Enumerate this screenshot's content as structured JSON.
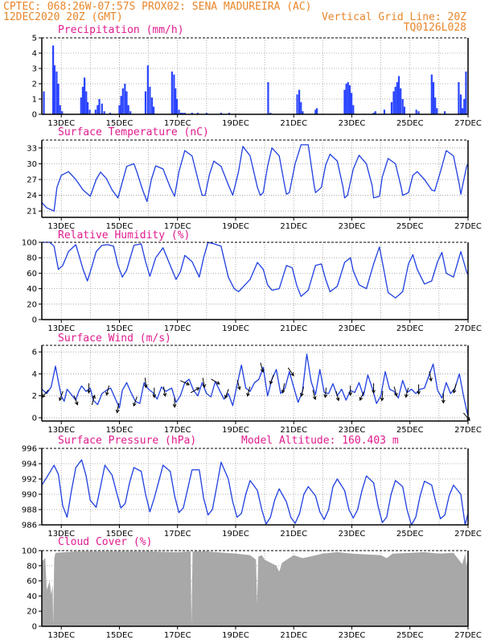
{
  "header": {
    "left_line1": "CPTEC:   068:26W-07:57S   PROX02: SENA MADUREIRA (AC)",
    "left_line2": "12DEC2020 20Z (GMT)",
    "right_line2": "Vertical Grid Line: 20Z",
    "right_line3": "TQ0126L028"
  },
  "colors": {
    "header_text": "#e8862a",
    "panel_title": "#e01b8e",
    "series_line": "#1f3fe0",
    "precip_bars": "#2a44ff",
    "cloud_fill": "#a8a8a8",
    "wind_arrows": "#000000"
  },
  "x_axis": {
    "tick_labels": [
      "13DEC",
      "15DEC",
      "17DEC",
      "19DEC",
      "21DEC",
      "23DEC",
      "25DEC",
      "27DEC"
    ],
    "tick_days": [
      13,
      15,
      17,
      19,
      21,
      23,
      25,
      27
    ],
    "start_day": 12.33,
    "end_day": 27.0,
    "vertical_grid_hour": "20Z"
  },
  "extra_label": {
    "model_altitude": "Model Altitude: 160.403 m"
  },
  "chart_data": [
    {
      "id": "precip",
      "type": "bar",
      "title": "Precipitation (mm/h)",
      "ylim": [
        0,
        5
      ],
      "yticks": [
        0,
        1,
        2,
        3,
        4,
        5
      ],
      "grid": true,
      "x": [
        12.4,
        12.72,
        12.77,
        12.84,
        12.9,
        12.96,
        13.03,
        13.68,
        13.74,
        13.8,
        13.86,
        13.91,
        13.98,
        14.18,
        14.25,
        14.31,
        14.4,
        14.48,
        14.68,
        15.0,
        15.06,
        15.12,
        15.19,
        15.25,
        15.31,
        15.38,
        15.9,
        15.98,
        16.05,
        16.12,
        16.18,
        16.81,
        16.88,
        16.93,
        16.98,
        17.05,
        17.12,
        17.18,
        17.25,
        17.5,
        17.7,
        18.0,
        18.5,
        18.78,
        20.12,
        20.2,
        21.12,
        21.19,
        21.25,
        21.31,
        21.75,
        21.8,
        22.75,
        22.81,
        22.87,
        22.93,
        22.99,
        23.05,
        23.75,
        23.81,
        24.12,
        24.37,
        24.44,
        24.5,
        24.56,
        24.62,
        24.68,
        24.75,
        24.81,
        25.22,
        25.3,
        25.75,
        25.81,
        25.87,
        25.93,
        26.2,
        26.68,
        26.75,
        26.81,
        26.87,
        26.93
      ],
      "values": [
        1.5,
        4.5,
        3.2,
        2.8,
        2.0,
        0.6,
        0.2,
        1.1,
        1.8,
        2.4,
        1.5,
        0.8,
        0.3,
        0.3,
        0.6,
        1.0,
        0.7,
        0.2,
        0.1,
        0.6,
        1.2,
        1.7,
        2.0,
        1.5,
        0.6,
        0.2,
        1.5,
        3.2,
        1.8,
        1.1,
        0.5,
        2.8,
        2.6,
        1.7,
        1.0,
        0.3,
        0.1,
        0.1,
        0.1,
        0.1,
        0.1,
        0.1,
        0.1,
        0.1,
        2.1,
        0.1,
        1.3,
        1.6,
        0.8,
        0.2,
        0.3,
        0.4,
        1.6,
        2.0,
        2.1,
        1.9,
        1.4,
        0.6,
        0.1,
        0.2,
        0.3,
        0.8,
        1.5,
        1.8,
        2.1,
        2.5,
        1.7,
        1.0,
        0.5,
        0.3,
        0.2,
        2.6,
        2.1,
        1.1,
        0.4,
        0.2,
        2.1,
        1.3,
        0.4,
        1.0,
        2.8
      ]
    },
    {
      "id": "temp",
      "type": "line",
      "title": "Surface Temperature (nC)",
      "ylim": [
        19.8,
        34.5
      ],
      "yticks": [
        21,
        24,
        27,
        30,
        33
      ],
      "grid": true,
      "x": [
        12.33,
        12.5,
        12.75,
        12.85,
        13.0,
        13.25,
        13.5,
        13.75,
        14.0,
        14.2,
        14.35,
        14.55,
        14.75,
        14.95,
        15.05,
        15.25,
        15.5,
        15.6,
        15.8,
        15.95,
        16.1,
        16.25,
        16.5,
        16.75,
        16.9,
        17.05,
        17.25,
        17.5,
        17.75,
        17.85,
        17.95,
        18.1,
        18.25,
        18.5,
        18.75,
        18.9,
        19.1,
        19.25,
        19.5,
        19.75,
        19.85,
        19.95,
        20.1,
        20.25,
        20.5,
        20.7,
        20.75,
        20.85,
        21.05,
        21.25,
        21.5,
        21.7,
        21.75,
        21.95,
        22.1,
        22.25,
        22.5,
        22.7,
        22.75,
        22.85,
        23.05,
        23.25,
        23.5,
        23.7,
        23.75,
        23.95,
        24.05,
        24.25,
        24.5,
        24.7,
        24.75,
        24.95,
        25.1,
        25.25,
        25.5,
        25.75,
        25.85,
        26.05,
        26.25,
        26.5,
        26.7,
        26.75,
        26.95,
        27.0
      ],
      "values": [
        22.6,
        21.6,
        21.0,
        25.5,
        27.8,
        28.5,
        27.0,
        25.0,
        23.8,
        27.0,
        28.4,
        27.2,
        25.0,
        23.5,
        25.5,
        29.5,
        30.0,
        28.5,
        25.0,
        22.8,
        27.0,
        29.6,
        29.0,
        25.5,
        23.8,
        28.5,
        32.5,
        31.5,
        26.0,
        24.0,
        24.0,
        28.0,
        30.5,
        29.5,
        26.0,
        24.0,
        28.5,
        33.3,
        31.5,
        25.5,
        24.0,
        24.5,
        29.5,
        33.0,
        31.5,
        25.5,
        24.2,
        24.5,
        30.0,
        33.6,
        33.6,
        26.0,
        24.5,
        25.5,
        29.8,
        31.8,
        30.5,
        25.5,
        23.5,
        24.0,
        29.0,
        31.6,
        30.0,
        25.8,
        23.5,
        23.8,
        27.5,
        31.0,
        30.0,
        25.5,
        24.0,
        24.5,
        27.8,
        28.5,
        27.0,
        25.0,
        24.8,
        28.5,
        32.5,
        31.5,
        26.0,
        24.2,
        29.5,
        30.0
      ]
    },
    {
      "id": "rh",
      "type": "line",
      "title": "Relative Humidity (%)",
      "ylim": [
        0,
        100
      ],
      "yticks": [
        0,
        20,
        40,
        60,
        80,
        100
      ],
      "grid": true,
      "x": [
        12.33,
        12.6,
        12.75,
        12.9,
        13.05,
        13.25,
        13.5,
        13.75,
        13.9,
        14.05,
        14.2,
        14.4,
        14.6,
        14.8,
        14.95,
        15.1,
        15.25,
        15.5,
        15.75,
        15.9,
        16.05,
        16.25,
        16.5,
        16.75,
        16.95,
        17.1,
        17.25,
        17.5,
        17.75,
        17.9,
        18.05,
        18.25,
        18.5,
        18.75,
        18.95,
        19.1,
        19.25,
        19.5,
        19.75,
        19.95,
        20.1,
        20.25,
        20.5,
        20.75,
        20.95,
        21.1,
        21.25,
        21.5,
        21.75,
        21.95,
        22.1,
        22.25,
        22.5,
        22.75,
        22.95,
        23.05,
        23.25,
        23.5,
        23.75,
        23.95,
        24.1,
        24.25,
        24.5,
        24.75,
        24.95,
        25.1,
        25.25,
        25.5,
        25.75,
        25.95,
        26.1,
        26.25,
        26.5,
        26.75,
        26.95,
        27.0
      ],
      "values": [
        100,
        100,
        95,
        65,
        70,
        88,
        97,
        65,
        50,
        68,
        88,
        96,
        97,
        95,
        70,
        55,
        64,
        96,
        98,
        75,
        56,
        80,
        93,
        70,
        52,
        62,
        83,
        75,
        55,
        80,
        100,
        98,
        95,
        55,
        40,
        36,
        42,
        52,
        74,
        65,
        45,
        38,
        40,
        70,
        67,
        45,
        30,
        38,
        70,
        72,
        52,
        36,
        43,
        74,
        80,
        63,
        45,
        40,
        72,
        94,
        65,
        35,
        28,
        36,
        72,
        84,
        65,
        46,
        50,
        75,
        87,
        60,
        55,
        88,
        62,
        58
      ]
    },
    {
      "id": "wind",
      "type": "line",
      "title": "Surface Wind (m/s)",
      "ylim": [
        -0.3,
        6.6
      ],
      "yticks": [
        0,
        2,
        4,
        6
      ],
      "grid": true,
      "x": [
        12.33,
        12.5,
        12.65,
        12.8,
        12.9,
        13.0,
        13.1,
        13.2,
        13.35,
        13.5,
        13.6,
        13.7,
        13.85,
        14.0,
        14.1,
        14.25,
        14.4,
        14.55,
        14.7,
        14.85,
        15.0,
        15.1,
        15.25,
        15.4,
        15.55,
        15.7,
        15.85,
        16.0,
        16.15,
        16.3,
        16.45,
        16.6,
        16.8,
        16.95,
        17.1,
        17.25,
        17.4,
        17.55,
        17.7,
        17.85,
        18.0,
        18.15,
        18.3,
        18.45,
        18.6,
        18.75,
        18.9,
        19.05,
        19.2,
        19.35,
        19.5,
        19.65,
        19.8,
        19.95,
        20.1,
        20.25,
        20.4,
        20.55,
        20.7,
        20.85,
        21.0,
        21.15,
        21.3,
        21.45,
        21.6,
        21.75,
        21.9,
        22.05,
        22.2,
        22.35,
        22.5,
        22.65,
        22.8,
        22.95,
        23.1,
        23.25,
        23.4,
        23.55,
        23.7,
        23.85,
        24.0,
        24.15,
        24.3,
        24.45,
        24.6,
        24.75,
        24.9,
        25.05,
        25.2,
        25.35,
        25.5,
        25.65,
        25.8,
        25.95,
        26.1,
        26.25,
        26.4,
        26.55,
        26.7,
        26.85,
        27.0
      ],
      "values": [
        2.6,
        2.2,
        2.8,
        4.7,
        3.3,
        2.0,
        1.5,
        2.6,
        2.1,
        1.6,
        2.4,
        2.9,
        2.4,
        2.7,
        1.6,
        1.2,
        2.2,
        2.5,
        2.7,
        1.8,
        0.9,
        2.5,
        3.2,
        2.3,
        1.5,
        1.3,
        3.2,
        2.6,
        2.3,
        1.7,
        2.8,
        2.4,
        2.7,
        1.4,
        2.0,
        3.2,
        3.5,
        2.5,
        2.0,
        3.2,
        2.2,
        1.9,
        3.3,
        2.5,
        1.7,
        2.2,
        1.1,
        3.0,
        4.8,
        2.7,
        2.4,
        3.2,
        3.5,
        4.6,
        2.0,
        3.5,
        4.4,
        2.2,
        2.7,
        4.2,
        2.8,
        1.4,
        2.4,
        5.8,
        3.3,
        2.1,
        4.4,
        2.3,
        2.2,
        3.1,
        2.0,
        2.6,
        1.6,
        2.5,
        2.3,
        3.2,
        2.0,
        3.9,
        2.7,
        1.3,
        2.0,
        4.2,
        2.6,
        2.4,
        1.8,
        3.4,
        2.3,
        2.6,
        2.2,
        2.6,
        2.7,
        3.8,
        4.9,
        2.5,
        1.8,
        3.2,
        2.2,
        2.7,
        4.0,
        1.9,
        0.1
      ],
      "arrows": [
        {
          "x": 12.45,
          "dir": 220
        },
        {
          "x": 13.0,
          "dir": 200
        },
        {
          "x": 13.5,
          "dir": 160
        },
        {
          "x": 13.95,
          "dir": 180
        },
        {
          "x": 14.1,
          "dir": 15
        },
        {
          "x": 14.6,
          "dir": 195
        },
        {
          "x": 14.95,
          "dir": 190
        },
        {
          "x": 15.55,
          "dir": 200
        },
        {
          "x": 15.9,
          "dir": 175
        },
        {
          "x": 16.2,
          "dir": 180
        },
        {
          "x": 16.55,
          "dir": 170
        },
        {
          "x": 16.9,
          "dir": 180
        },
        {
          "x": 17.25,
          "dir": 115
        },
        {
          "x": 17.6,
          "dir": 60
        },
        {
          "x": 17.9,
          "dir": 170
        },
        {
          "x": 18.3,
          "dir": 120
        },
        {
          "x": 18.7,
          "dir": 200
        },
        {
          "x": 19.1,
          "dir": 165
        },
        {
          "x": 19.45,
          "dir": 195
        },
        {
          "x": 19.9,
          "dir": 165
        },
        {
          "x": 20.25,
          "dir": 200
        },
        {
          "x": 20.65,
          "dir": 190
        },
        {
          "x": 20.9,
          "dir": 145
        },
        {
          "x": 21.3,
          "dir": 195
        },
        {
          "x": 21.7,
          "dir": 165
        },
        {
          "x": 22.1,
          "dir": 185
        },
        {
          "x": 22.5,
          "dir": 165
        },
        {
          "x": 22.95,
          "dir": 180
        },
        {
          "x": 23.35,
          "dir": 205
        },
        {
          "x": 23.75,
          "dir": 180
        },
        {
          "x": 24.05,
          "dir": 185
        },
        {
          "x": 24.5,
          "dir": 165
        },
        {
          "x": 24.9,
          "dir": 195
        },
        {
          "x": 25.3,
          "dir": 180
        },
        {
          "x": 25.7,
          "dir": 170
        },
        {
          "x": 26.15,
          "dir": 180
        },
        {
          "x": 26.55,
          "dir": 195
        },
        {
          "x": 26.95,
          "dir": 140
        }
      ]
    },
    {
      "id": "pressure",
      "type": "line",
      "title": "Surface Pressure (hPa)",
      "ylim": [
        986,
        996
      ],
      "yticks": [
        986,
        988,
        990,
        992,
        994,
        996
      ],
      "grid": true,
      "x": [
        12.33,
        12.5,
        12.75,
        12.9,
        13.05,
        13.2,
        13.35,
        13.5,
        13.7,
        13.85,
        14.0,
        14.2,
        14.35,
        14.5,
        14.75,
        14.9,
        15.05,
        15.2,
        15.35,
        15.5,
        15.75,
        15.9,
        16.05,
        16.2,
        16.35,
        16.5,
        16.75,
        16.9,
        17.05,
        17.2,
        17.35,
        17.5,
        17.75,
        17.9,
        18.05,
        18.2,
        18.35,
        18.5,
        18.75,
        18.9,
        19.05,
        19.2,
        19.35,
        19.5,
        19.75,
        19.9,
        20.05,
        20.2,
        20.35,
        20.5,
        20.75,
        20.9,
        21.05,
        21.2,
        21.35,
        21.5,
        21.75,
        21.9,
        22.05,
        22.2,
        22.35,
        22.5,
        22.75,
        22.9,
        23.05,
        23.2,
        23.35,
        23.5,
        23.75,
        23.9,
        24.05,
        24.2,
        24.35,
        24.5,
        24.75,
        24.9,
        25.05,
        25.2,
        25.35,
        25.5,
        25.75,
        25.9,
        26.05,
        26.2,
        26.35,
        26.5,
        26.75,
        26.9,
        27.0
      ],
      "values": [
        991.2,
        992.2,
        993.8,
        992.6,
        988.5,
        987.0,
        990.5,
        993.5,
        994.5,
        992.5,
        989.2,
        988.3,
        991.0,
        993.8,
        992.5,
        990.3,
        988.2,
        988.8,
        991.5,
        993.5,
        993.0,
        990.0,
        987.7,
        989.5,
        991.6,
        993.8,
        993.0,
        989.8,
        987.6,
        988.2,
        990.7,
        993.2,
        993.2,
        989.5,
        987.3,
        988.0,
        991.0,
        994.2,
        992.0,
        989.0,
        987.0,
        987.5,
        990.0,
        991.8,
        990.5,
        988.0,
        986.1,
        987.0,
        989.3,
        990.7,
        989.0,
        987.0,
        986.2,
        987.5,
        990.0,
        991.0,
        989.8,
        987.7,
        986.7,
        988.0,
        991.0,
        992.0,
        990.5,
        988.0,
        986.9,
        988.0,
        990.5,
        992.4,
        991.5,
        988.5,
        986.3,
        987.0,
        990.0,
        991.8,
        991.0,
        988.0,
        986.0,
        987.0,
        989.8,
        991.7,
        991.2,
        988.8,
        986.8,
        987.3,
        989.8,
        991.2,
        990.0,
        986.0,
        987.5
      ]
    },
    {
      "id": "cloud",
      "type": "area",
      "title": "Cloud Cover (%)",
      "ylim": [
        0,
        100
      ],
      "yticks": [
        0,
        20,
        40,
        60,
        80,
        100
      ],
      "grid": true,
      "x": [
        12.33,
        12.45,
        12.5,
        12.6,
        12.65,
        12.7,
        12.72,
        12.76,
        12.8,
        13.5,
        14.0,
        15.0,
        16.0,
        17.0,
        17.45,
        17.48,
        17.52,
        18.0,
        19.0,
        19.5,
        19.7,
        19.74,
        19.78,
        19.9,
        20.0,
        20.4,
        20.5,
        20.6,
        21.0,
        21.3,
        22.0,
        22.5,
        23.0,
        24.0,
        24.2,
        24.4,
        25.0,
        25.5,
        26.0,
        26.5,
        26.8,
        26.9,
        26.94,
        27.0
      ],
      "values": [
        86,
        90,
        48,
        60,
        42,
        55,
        2,
        90,
        97,
        99,
        99,
        99,
        99,
        98,
        99,
        2,
        99,
        99,
        96,
        94,
        88,
        30,
        92,
        94,
        88,
        80,
        72,
        84,
        94,
        90,
        96,
        98,
        96,
        94,
        90,
        96,
        97,
        98,
        96,
        97,
        82,
        96,
        80,
        90
      ]
    }
  ]
}
